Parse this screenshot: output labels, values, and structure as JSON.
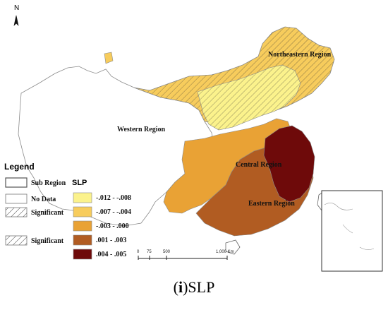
{
  "north_label": "N",
  "regions": {
    "northeastern": "Northeastern Region",
    "western": "Western Region",
    "central": "Central Region",
    "eastern": "Eastern Region"
  },
  "legend": {
    "title": "Legend",
    "sub_region": "Sub Region",
    "no_data": "No Data",
    "significant_1": "Significant",
    "significant_2": "Significant",
    "slp_title": "SLP",
    "classes": [
      {
        "label": "-.012 - -.008",
        "color": "#fbf28c"
      },
      {
        "label": "-.007 - -.004",
        "color": "#f7cc5c"
      },
      {
        "label": "-.003 - .000",
        "color": "#e9a235"
      },
      {
        "label": ".001 - .003",
        "color": "#b15c22"
      },
      {
        "label": ".004 - .005",
        "color": "#6e0a0a"
      }
    ]
  },
  "scale_bar": {
    "ticks": [
      "0",
      "75",
      "500",
      "1,000 Km"
    ]
  },
  "caption": {
    "letter": "i",
    "text": "SLP"
  }
}
